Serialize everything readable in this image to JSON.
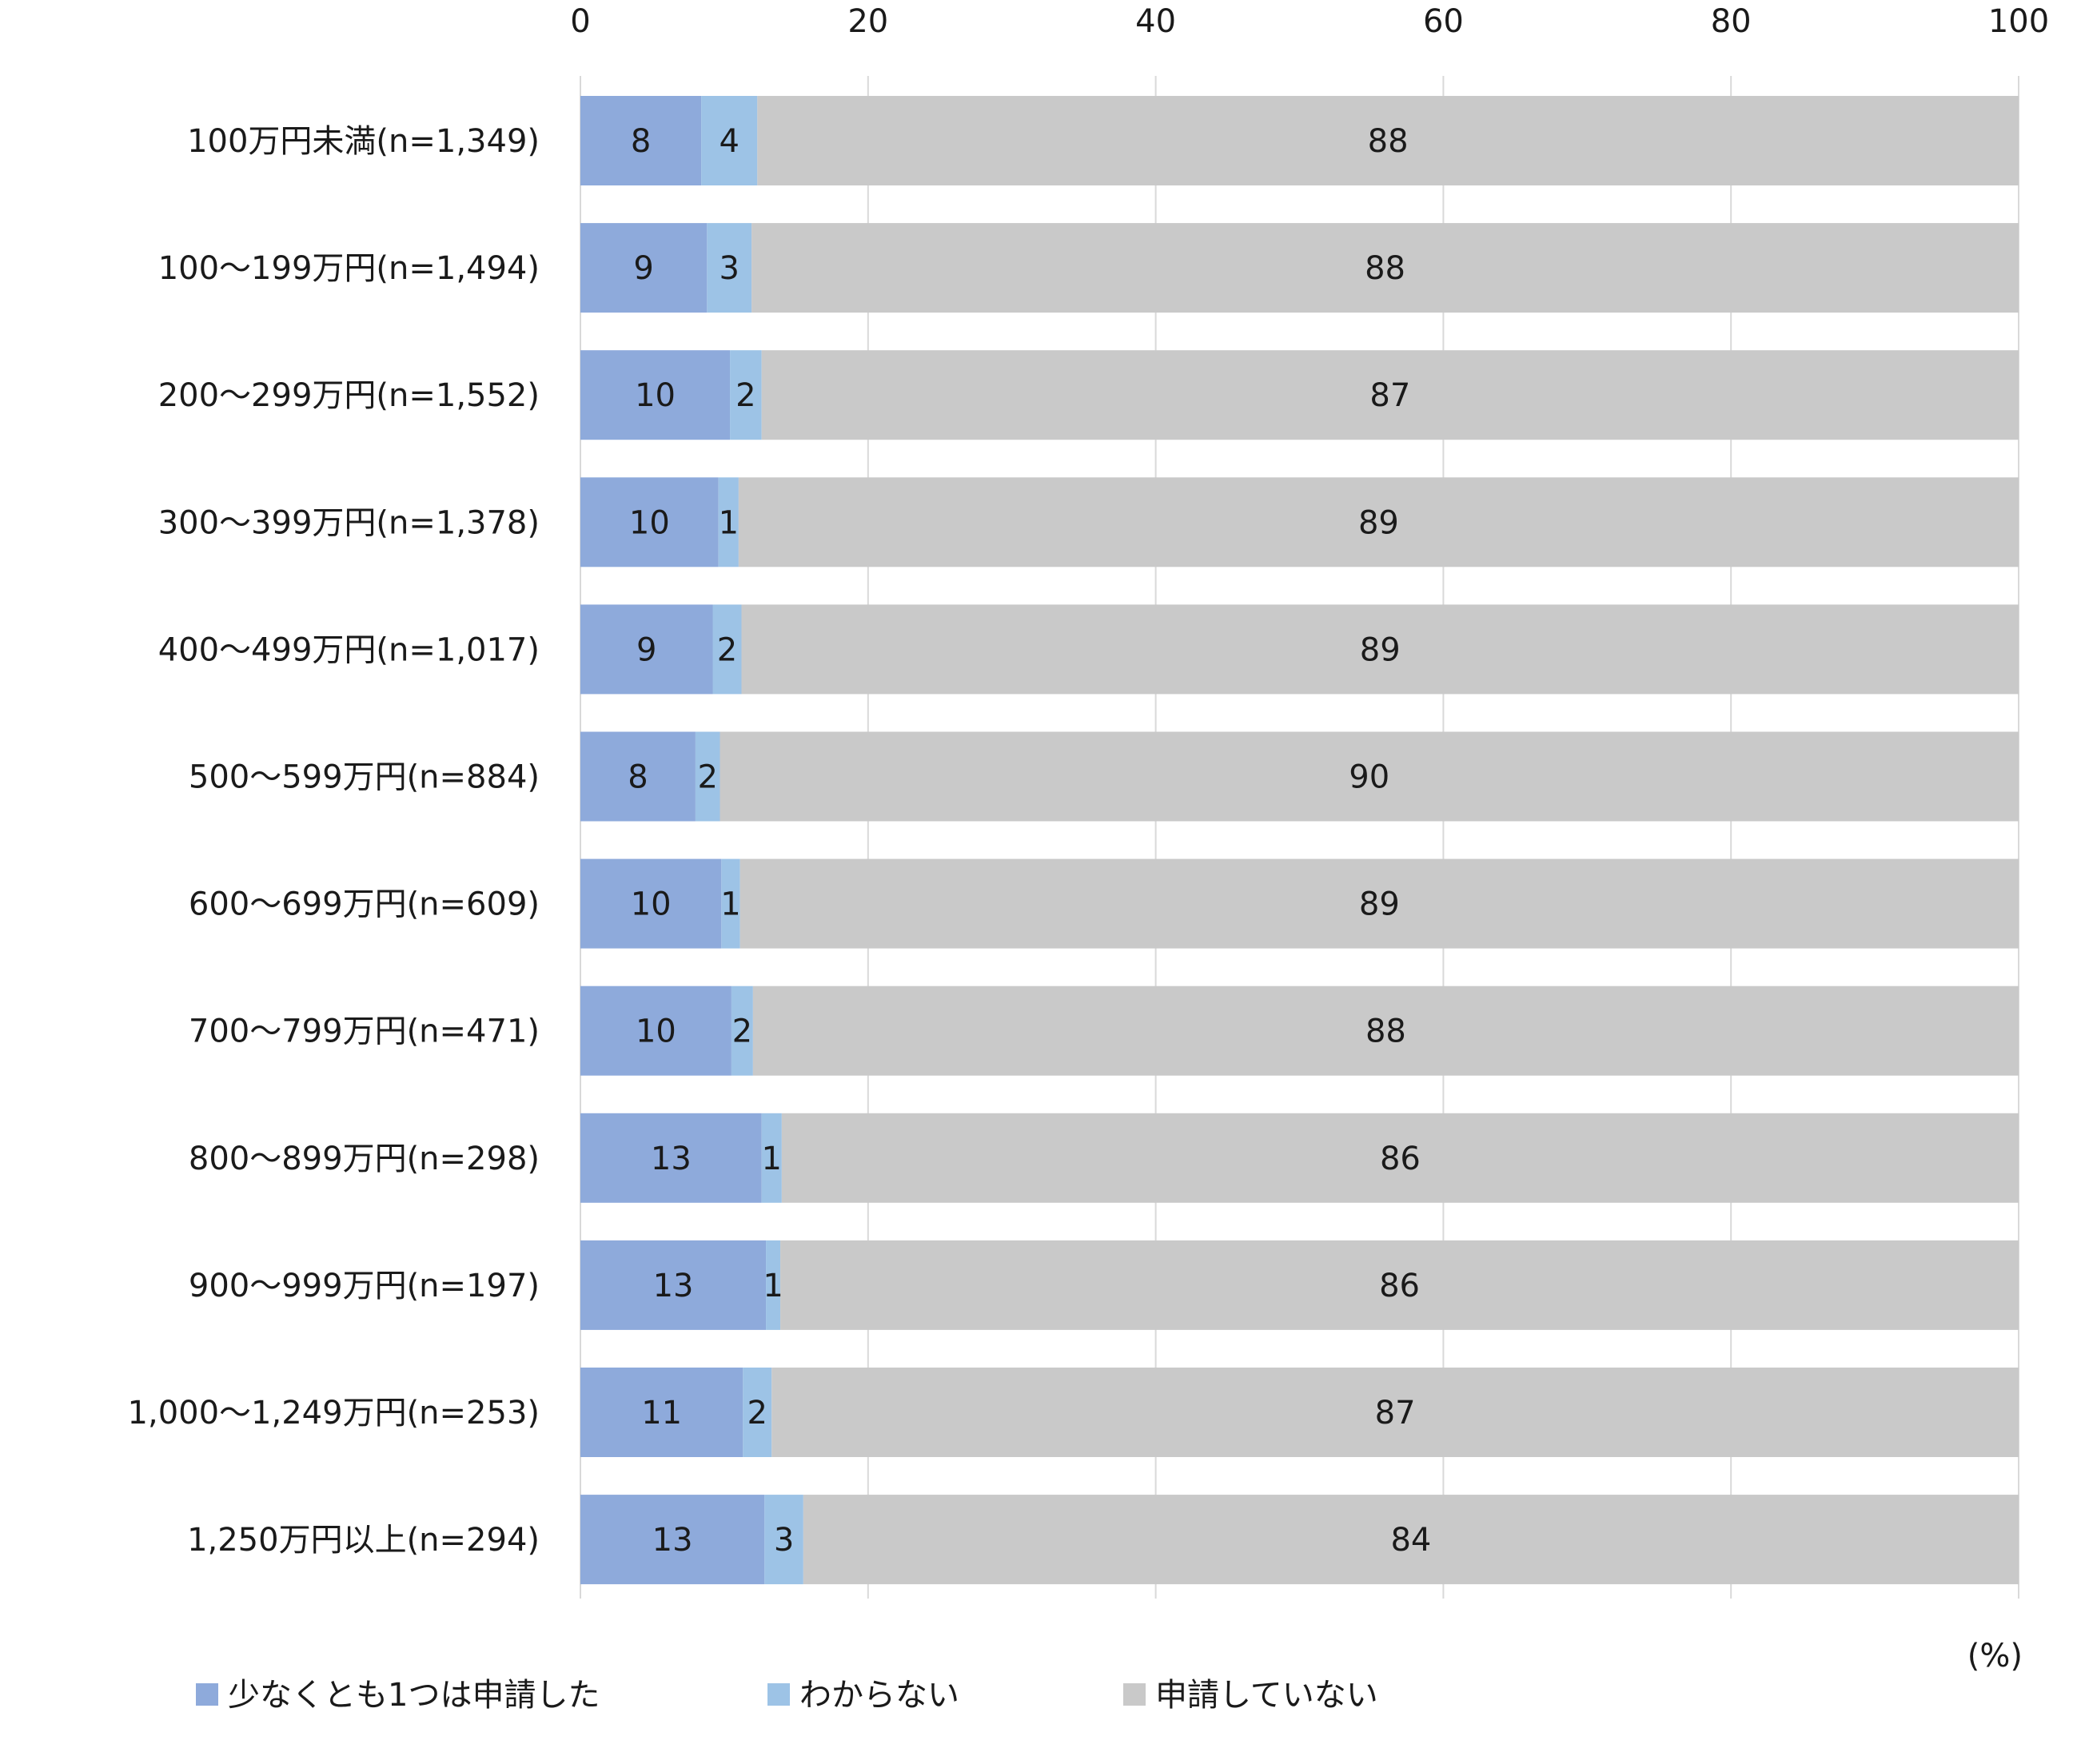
{
  "chart_data": {
    "type": "bar",
    "orientation": "horizontal",
    "stacked": true,
    "categories": [
      "100万円未満(n=1,349)",
      "100～199万円(n=1,494)",
      "200～299万円(n=1,552)",
      "300～399万円(n=1,378)",
      "400～499万円(n=1,017)",
      "500～599万円(n=884)",
      "600～699万円(n=609)",
      "700～799万円(n=471)",
      "800～899万円(n=298)",
      "900～999万円(n=197)",
      "1,000～1,249万円(n=253)",
      "1,250万円以上(n=294)"
    ],
    "series": [
      {
        "name": "少なくとも1つは申請した",
        "color": "#8eaadb",
        "values": [
          8.4,
          8.8,
          10.4,
          9.6,
          9.2,
          8.0,
          9.8,
          10.5,
          12.6,
          12.9,
          11.3,
          12.8
        ],
        "labels": [
          "8",
          "9",
          "10",
          "10",
          "9",
          "8",
          "10",
          "10",
          "13",
          "13",
          "11",
          "13"
        ]
      },
      {
        "name": "わからない",
        "color": "#9dc3e6",
        "values": [
          3.9,
          3.1,
          2.2,
          1.4,
          2.0,
          1.7,
          1.3,
          1.5,
          1.4,
          1.0,
          2.0,
          2.7
        ],
        "labels": [
          "4",
          "3",
          "2",
          "1",
          "2",
          "2",
          "1",
          "2",
          "1",
          "1",
          "2",
          "3"
        ]
      },
      {
        "name": "申請していない",
        "color": "#c9c9c9",
        "values": [
          87.7,
          88.1,
          87.4,
          89.0,
          88.8,
          90.3,
          88.9,
          88.0,
          86.0,
          86.1,
          86.7,
          84.5
        ],
        "labels": [
          "88",
          "88",
          "87",
          "89",
          "89",
          "90",
          "89",
          "88",
          "86",
          "86",
          "87",
          "84"
        ]
      }
    ],
    "xlim": [
      0,
      100
    ],
    "xticks": [
      "0",
      "20",
      "40",
      "60",
      "80",
      "100"
    ],
    "xunit": "(%)",
    "grid": true,
    "legend_position": "bottom"
  }
}
